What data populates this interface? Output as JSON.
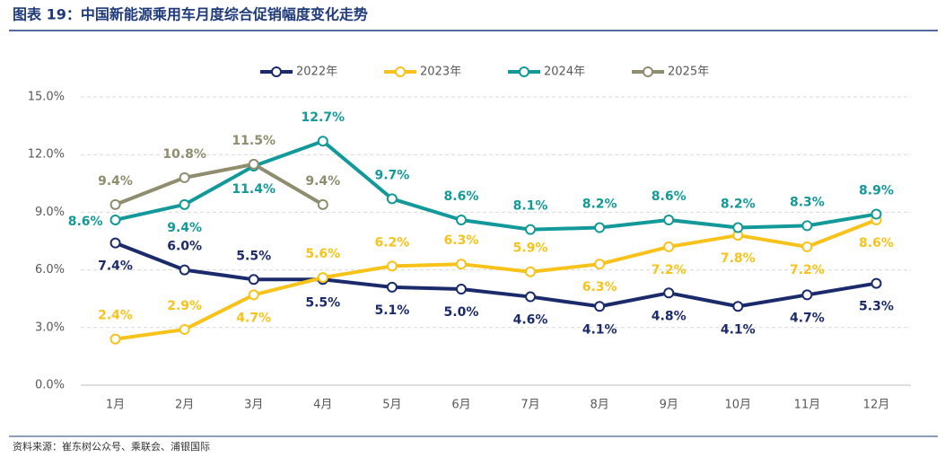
{
  "chart_data": {
    "type": "line",
    "title": "图表 19：中国新能源乘用车月度综合促销幅度变化走势",
    "source": "资料来源：崔东树公众号、乘联会、浦银国际",
    "categories": [
      "1月",
      "2月",
      "3月",
      "4月",
      "5月",
      "6月",
      "7月",
      "8月",
      "9月",
      "10月",
      "11月",
      "12月"
    ],
    "ylim": [
      0,
      15
    ],
    "yticks": [
      {
        "value": 0,
        "label": "0.0%"
      },
      {
        "value": 3,
        "label": "3.0%"
      },
      {
        "value": 6,
        "label": "6.0%"
      },
      {
        "value": 9,
        "label": "9.0%"
      },
      {
        "value": 12,
        "label": "12.0%"
      },
      {
        "value": 15,
        "label": "15.0%"
      }
    ],
    "grid": true,
    "legend": "top",
    "series": [
      {
        "name": "2022年",
        "color": "#1b2a6b",
        "values": [
          7.4,
          6.0,
          5.5,
          5.5,
          5.1,
          5.0,
          4.6,
          4.1,
          4.8,
          4.1,
          4.7,
          5.3
        ],
        "value_labels": [
          "7.4%",
          "6.0%",
          "5.5%",
          "5.5%",
          "5.1%",
          "5.0%",
          "4.6%",
          "4.1%",
          "4.8%",
          "4.1%",
          "4.7%",
          "5.3%"
        ]
      },
      {
        "name": "2023年",
        "color": "#f7c31b",
        "values": [
          2.4,
          2.9,
          4.7,
          5.6,
          6.2,
          6.3,
          5.9,
          6.3,
          7.2,
          7.8,
          7.2,
          8.6
        ],
        "value_labels": [
          "2.4%",
          "2.9%",
          "4.7%",
          "5.6%",
          "6.2%",
          "6.3%",
          "5.9%",
          "6.3%",
          "7.2%",
          "7.8%",
          "7.2%",
          "8.6%"
        ]
      },
      {
        "name": "2024年",
        "color": "#14999a",
        "values": [
          8.6,
          9.4,
          11.4,
          12.7,
          9.7,
          8.6,
          8.1,
          8.2,
          8.6,
          8.2,
          8.3,
          8.9
        ],
        "value_labels": [
          "8.6%",
          "9.4%",
          "11.4%",
          "12.7%",
          "9.7%",
          "8.6%",
          "8.1%",
          "8.2%",
          "8.6%",
          "8.2%",
          "8.3%",
          "8.9%"
        ]
      },
      {
        "name": "2025年",
        "color": "#8f8d6e",
        "values": [
          9.4,
          10.8,
          11.5,
          9.4,
          null,
          null,
          null,
          null,
          null,
          null,
          null,
          null
        ],
        "value_labels": [
          "9.4%",
          "10.8%",
          "11.5%",
          "9.4%",
          null,
          null,
          null,
          null,
          null,
          null,
          null,
          null
        ]
      }
    ]
  }
}
